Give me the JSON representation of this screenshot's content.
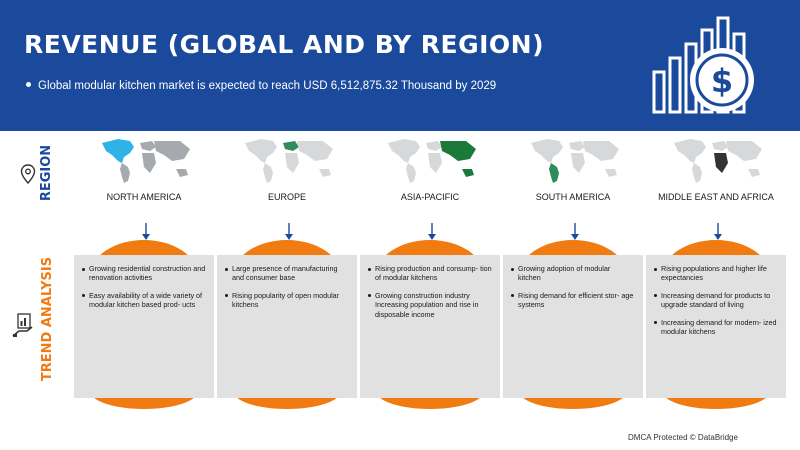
{
  "header": {
    "title": "REVENUE (GLOBAL AND BY REGION)",
    "subtitle": "Global modular kitchen market is expected to reach USD 6,512,875.32 Thousand by 2029",
    "icon": "bar-chart-dollar-icon"
  },
  "side_labels": {
    "region": "REGION",
    "trend": "TREND ANALYSIS"
  },
  "colors": {
    "header_bg": "#1b4a9c",
    "accent_orange": "#f07b10",
    "card_bg": "#e1e1e1",
    "map_gray": "#a6a9ad",
    "map_highlight_na": "#2fb2e8",
    "map_highlight_eu": "#2f8d5d",
    "map_highlight_apac": "#1b7a3a",
    "map_highlight_sa": "#2f8d5d",
    "map_highlight_mea": "#333333"
  },
  "regions": [
    {
      "name": "NORTH AMERICA",
      "bullets": [
        "Growing residential construction and renovation activities",
        "Easy availability of a wide variety of modular kitchen based prod- ucts"
      ]
    },
    {
      "name": "EUROPE",
      "bullets": [
        "Large presence of manufacturing and consumer base",
        "Rising popularity of open modular kitchens"
      ]
    },
    {
      "name": "ASIA-PACIFIC",
      "bullets": [
        "Rising production and consump- tion of modular kitchens",
        "Growing construction industry Increasing population and rise in disposable income"
      ]
    },
    {
      "name": "SOUTH AMERICA",
      "bullets": [
        "Growing adoption of modular kitchen",
        "Rising demand for efficient stor- age systems"
      ]
    },
    {
      "name": "MIDDLE EAST AND AFRICA",
      "bullets": [
        "Rising populations and higher life expectancies",
        "Increasing demand for products to upgrade standard of living",
        "Increasing demand for modern- ized modular kitchens"
      ]
    }
  ],
  "footer": "DMCA Protected © DataBridge"
}
